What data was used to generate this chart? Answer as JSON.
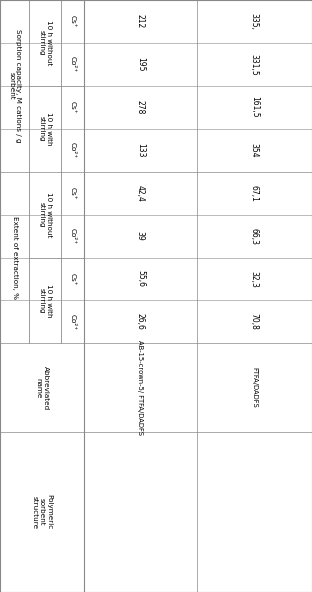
{
  "bg_color": "#ffffff",
  "text_color": "#000000",
  "line_color": "#888888",
  "font_size": 5.2,
  "row1_name": "AB-15-crown-5/ FTFA/DADFS",
  "row2_name": "FTFA/DADFS",
  "row1_values": [
    "26,6",
    "55,6",
    "39",
    "42,4",
    "133",
    "278",
    "195",
    "212"
  ],
  "row2_values": [
    "70,8",
    "32,3",
    "66,3",
    "67,1",
    "354",
    "161,5",
    "331,5",
    "335,"
  ],
  "col_struct_label": "Polymeric\nsorbent\nstructure",
  "col_abbrev_label": "Abbreviated\nname",
  "group1_label": "Extent of extraction, %",
  "group2_label": "Sorption capacity, M cations / g\nsorbent",
  "cond1_label": "10 h with\nstirring",
  "cond2_label": "10 h without\nstirring",
  "cond3_label": "10 h with\nstirring",
  "cond4_label": "10 h without\nstirring",
  "ion1": "Co²⁺",
  "ion2": "Cs⁺",
  "ion3": "Co²⁺",
  "ion4": "Cs⁺",
  "ion5": "Co²⁺",
  "ion6": "Cs⁺",
  "ion7": "Co²⁺",
  "ion8": "Cs⁺"
}
